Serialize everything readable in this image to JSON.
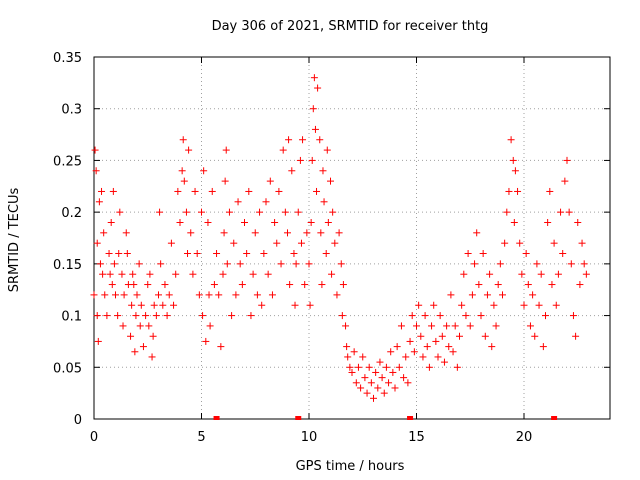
{
  "chart_data": {
    "type": "scatter",
    "title": "Day 306 of 2021, SRMTID for receiver thtg",
    "xlabel": "GPS time / hours",
    "ylabel": "SRMTID / TECUs",
    "xlim": [
      0,
      24
    ],
    "ylim": [
      0,
      0.35
    ],
    "xticks": [
      0,
      5,
      10,
      15,
      20
    ],
    "xtick_labels": [
      "0",
      "5",
      "10",
      "15",
      "20"
    ],
    "yticks": [
      0,
      0.05,
      0.1,
      0.15,
      0.2,
      0.25,
      0.3,
      0.35
    ],
    "ytick_labels": [
      "0",
      "0.05",
      "0.1",
      "0.15",
      "0.2",
      "0.25",
      "0.3",
      "0.35"
    ],
    "grid": true,
    "marker": "plus",
    "color": "#ff0000",
    "series": [
      {
        "points": [
          [
            0.0,
            0.12
          ],
          [
            0.05,
            0.26
          ],
          [
            0.1,
            0.24
          ],
          [
            0.15,
            0.1
          ],
          [
            0.15,
            0.17
          ],
          [
            0.2,
            0.075
          ],
          [
            0.25,
            0.21
          ],
          [
            0.3,
            0.15
          ],
          [
            0.35,
            0.22
          ],
          [
            0.4,
            0.14
          ],
          [
            0.45,
            0.18
          ],
          [
            0.5,
            0.12
          ],
          [
            0.6,
            0.1
          ],
          [
            0.7,
            0.16
          ],
          [
            0.75,
            0.14
          ],
          [
            0.8,
            0.19
          ],
          [
            0.85,
            0.13
          ],
          [
            0.9,
            0.22
          ],
          [
            0.95,
            0.15
          ],
          [
            1.0,
            0.12
          ],
          [
            1.1,
            0.1
          ],
          [
            1.15,
            0.16
          ],
          [
            1.2,
            0.2
          ],
          [
            1.3,
            0.14
          ],
          [
            1.35,
            0.09
          ],
          [
            1.4,
            0.12
          ],
          [
            1.5,
            0.18
          ],
          [
            1.55,
            0.16
          ],
          [
            1.6,
            0.13
          ],
          [
            1.7,
            0.08
          ],
          [
            1.75,
            0.11
          ],
          [
            1.8,
            0.14
          ],
          [
            1.85,
            0.13
          ],
          [
            1.9,
            0.065
          ],
          [
            1.95,
            0.1
          ],
          [
            2.0,
            0.12
          ],
          [
            2.1,
            0.15
          ],
          [
            2.15,
            0.09
          ],
          [
            2.2,
            0.11
          ],
          [
            2.3,
            0.07
          ],
          [
            2.4,
            0.1
          ],
          [
            2.5,
            0.13
          ],
          [
            2.55,
            0.09
          ],
          [
            2.6,
            0.14
          ],
          [
            2.7,
            0.06
          ],
          [
            2.75,
            0.08
          ],
          [
            2.8,
            0.11
          ],
          [
            2.9,
            0.1
          ],
          [
            3.0,
            0.12
          ],
          [
            3.05,
            0.2
          ],
          [
            3.1,
            0.15
          ],
          [
            3.2,
            0.11
          ],
          [
            3.3,
            0.13
          ],
          [
            3.4,
            0.1
          ],
          [
            3.5,
            0.12
          ],
          [
            3.6,
            0.17
          ],
          [
            3.7,
            0.11
          ],
          [
            3.8,
            0.14
          ],
          [
            3.9,
            0.22
          ],
          [
            4.0,
            0.19
          ],
          [
            4.1,
            0.24
          ],
          [
            4.15,
            0.27
          ],
          [
            4.2,
            0.23
          ],
          [
            4.3,
            0.2
          ],
          [
            4.35,
            0.16
          ],
          [
            4.4,
            0.26
          ],
          [
            4.5,
            0.18
          ],
          [
            4.6,
            0.14
          ],
          [
            4.7,
            0.22
          ],
          [
            4.8,
            0.16
          ],
          [
            4.9,
            0.12
          ],
          [
            5.0,
            0.2
          ],
          [
            5.05,
            0.1
          ],
          [
            5.1,
            0.24
          ],
          [
            5.2,
            0.075
          ],
          [
            5.3,
            0.19
          ],
          [
            5.35,
            0.12
          ],
          [
            5.4,
            0.09
          ],
          [
            5.5,
            0.22
          ],
          [
            5.6,
            0.13
          ],
          [
            5.7,
            0.16
          ],
          [
            5.8,
            0.12
          ],
          [
            5.9,
            0.07
          ],
          [
            6.0,
            0.14
          ],
          [
            6.05,
            0.18
          ],
          [
            6.1,
            0.23
          ],
          [
            6.15,
            0.26
          ],
          [
            6.2,
            0.15
          ],
          [
            6.3,
            0.2
          ],
          [
            6.4,
            0.1
          ],
          [
            6.5,
            0.17
          ],
          [
            6.6,
            0.12
          ],
          [
            6.7,
            0.21
          ],
          [
            6.8,
            0.15
          ],
          [
            6.9,
            0.13
          ],
          [
            7.0,
            0.19
          ],
          [
            7.1,
            0.16
          ],
          [
            7.2,
            0.22
          ],
          [
            7.3,
            0.1
          ],
          [
            7.4,
            0.14
          ],
          [
            7.5,
            0.18
          ],
          [
            7.6,
            0.12
          ],
          [
            7.7,
            0.2
          ],
          [
            7.8,
            0.11
          ],
          [
            7.9,
            0.16
          ],
          [
            8.0,
            0.21
          ],
          [
            8.1,
            0.14
          ],
          [
            8.2,
            0.23
          ],
          [
            8.3,
            0.12
          ],
          [
            8.4,
            0.19
          ],
          [
            8.5,
            0.17
          ],
          [
            8.6,
            0.22
          ],
          [
            8.7,
            0.15
          ],
          [
            8.8,
            0.26
          ],
          [
            8.9,
            0.2
          ],
          [
            9.0,
            0.18
          ],
          [
            9.05,
            0.27
          ],
          [
            9.1,
            0.13
          ],
          [
            9.2,
            0.24
          ],
          [
            9.3,
            0.16
          ],
          [
            9.35,
            0.11
          ],
          [
            9.4,
            0.15
          ],
          [
            9.5,
            0.2
          ],
          [
            9.6,
            0.25
          ],
          [
            9.65,
            0.17
          ],
          [
            9.7,
            0.27
          ],
          [
            9.8,
            0.13
          ],
          [
            9.9,
            0.18
          ],
          [
            10.0,
            0.15
          ],
          [
            10.05,
            0.11
          ],
          [
            10.1,
            0.19
          ],
          [
            10.15,
            0.25
          ],
          [
            10.2,
            0.3
          ],
          [
            10.25,
            0.33
          ],
          [
            10.3,
            0.28
          ],
          [
            10.35,
            0.22
          ],
          [
            10.4,
            0.32
          ],
          [
            10.5,
            0.27
          ],
          [
            10.55,
            0.18
          ],
          [
            10.6,
            0.13
          ],
          [
            10.65,
            0.24
          ],
          [
            10.7,
            0.21
          ],
          [
            10.8,
            0.16
          ],
          [
            10.85,
            0.26
          ],
          [
            10.9,
            0.19
          ],
          [
            11.0,
            0.23
          ],
          [
            11.05,
            0.14
          ],
          [
            11.1,
            0.2
          ],
          [
            11.2,
            0.17
          ],
          [
            11.3,
            0.12
          ],
          [
            11.4,
            0.18
          ],
          [
            11.5,
            0.15
          ],
          [
            11.55,
            0.1
          ],
          [
            11.6,
            0.13
          ],
          [
            11.7,
            0.09
          ],
          [
            11.75,
            0.07
          ],
          [
            11.8,
            0.06
          ],
          [
            11.9,
            0.05
          ],
          [
            12.0,
            0.045
          ],
          [
            12.1,
            0.065
          ],
          [
            12.2,
            0.035
          ],
          [
            12.3,
            0.05
          ],
          [
            12.4,
            0.03
          ],
          [
            12.5,
            0.06
          ],
          [
            12.6,
            0.04
          ],
          [
            12.7,
            0.025
          ],
          [
            12.8,
            0.05
          ],
          [
            12.9,
            0.035
          ],
          [
            13.0,
            0.02
          ],
          [
            13.1,
            0.045
          ],
          [
            13.2,
            0.03
          ],
          [
            13.3,
            0.055
          ],
          [
            13.4,
            0.04
          ],
          [
            13.5,
            0.025
          ],
          [
            13.6,
            0.05
          ],
          [
            13.7,
            0.035
          ],
          [
            13.8,
            0.065
          ],
          [
            13.9,
            0.045
          ],
          [
            14.0,
            0.03
          ],
          [
            14.1,
            0.07
          ],
          [
            14.2,
            0.05
          ],
          [
            14.3,
            0.09
          ],
          [
            14.4,
            0.04
          ],
          [
            14.5,
            0.06
          ],
          [
            14.6,
            0.035
          ],
          [
            14.7,
            0.075
          ],
          [
            14.8,
            0.1
          ],
          [
            14.9,
            0.065
          ],
          [
            15.0,
            0.09
          ],
          [
            15.1,
            0.11
          ],
          [
            15.2,
            0.08
          ],
          [
            15.3,
            0.06
          ],
          [
            15.4,
            0.1
          ],
          [
            15.5,
            0.07
          ],
          [
            15.6,
            0.05
          ],
          [
            15.7,
            0.09
          ],
          [
            15.8,
            0.11
          ],
          [
            15.9,
            0.075
          ],
          [
            16.0,
            0.06
          ],
          [
            16.1,
            0.1
          ],
          [
            16.2,
            0.08
          ],
          [
            16.3,
            0.055
          ],
          [
            16.4,
            0.09
          ],
          [
            16.5,
            0.07
          ],
          [
            16.6,
            0.12
          ],
          [
            16.7,
            0.065
          ],
          [
            16.8,
            0.09
          ],
          [
            16.9,
            0.05
          ],
          [
            17.0,
            0.08
          ],
          [
            17.1,
            0.11
          ],
          [
            17.2,
            0.14
          ],
          [
            17.3,
            0.1
          ],
          [
            17.4,
            0.16
          ],
          [
            17.5,
            0.09
          ],
          [
            17.6,
            0.12
          ],
          [
            17.7,
            0.15
          ],
          [
            17.8,
            0.18
          ],
          [
            17.9,
            0.13
          ],
          [
            18.0,
            0.1
          ],
          [
            18.1,
            0.16
          ],
          [
            18.2,
            0.08
          ],
          [
            18.3,
            0.12
          ],
          [
            18.4,
            0.14
          ],
          [
            18.5,
            0.07
          ],
          [
            18.6,
            0.11
          ],
          [
            18.7,
            0.09
          ],
          [
            18.8,
            0.13
          ],
          [
            18.9,
            0.15
          ],
          [
            19.0,
            0.12
          ],
          [
            19.1,
            0.17
          ],
          [
            19.2,
            0.2
          ],
          [
            19.3,
            0.22
          ],
          [
            19.4,
            0.27
          ],
          [
            19.5,
            0.25
          ],
          [
            19.55,
            0.19
          ],
          [
            19.6,
            0.24
          ],
          [
            19.7,
            0.22
          ],
          [
            19.8,
            0.17
          ],
          [
            19.9,
            0.14
          ],
          [
            20.0,
            0.11
          ],
          [
            20.1,
            0.16
          ],
          [
            20.2,
            0.13
          ],
          [
            20.3,
            0.09
          ],
          [
            20.4,
            0.12
          ],
          [
            20.5,
            0.08
          ],
          [
            20.6,
            0.15
          ],
          [
            20.7,
            0.11
          ],
          [
            20.8,
            0.14
          ],
          [
            20.9,
            0.07
          ],
          [
            21.0,
            0.1
          ],
          [
            21.1,
            0.19
          ],
          [
            21.2,
            0.22
          ],
          [
            21.3,
            0.13
          ],
          [
            21.4,
            0.17
          ],
          [
            21.5,
            0.11
          ],
          [
            21.6,
            0.14
          ],
          [
            21.7,
            0.2
          ],
          [
            21.8,
            0.16
          ],
          [
            21.9,
            0.23
          ],
          [
            22.0,
            0.25
          ],
          [
            22.1,
            0.2
          ],
          [
            22.2,
            0.15
          ],
          [
            22.3,
            0.1
          ],
          [
            22.4,
            0.08
          ],
          [
            22.5,
            0.19
          ],
          [
            22.6,
            0.13
          ],
          [
            22.7,
            0.17
          ],
          [
            22.8,
            0.15
          ],
          [
            22.9,
            0.14
          ]
        ]
      }
    ],
    "zero_points_x": [
      5.7,
      9.5,
      14.7,
      21.4
    ]
  }
}
